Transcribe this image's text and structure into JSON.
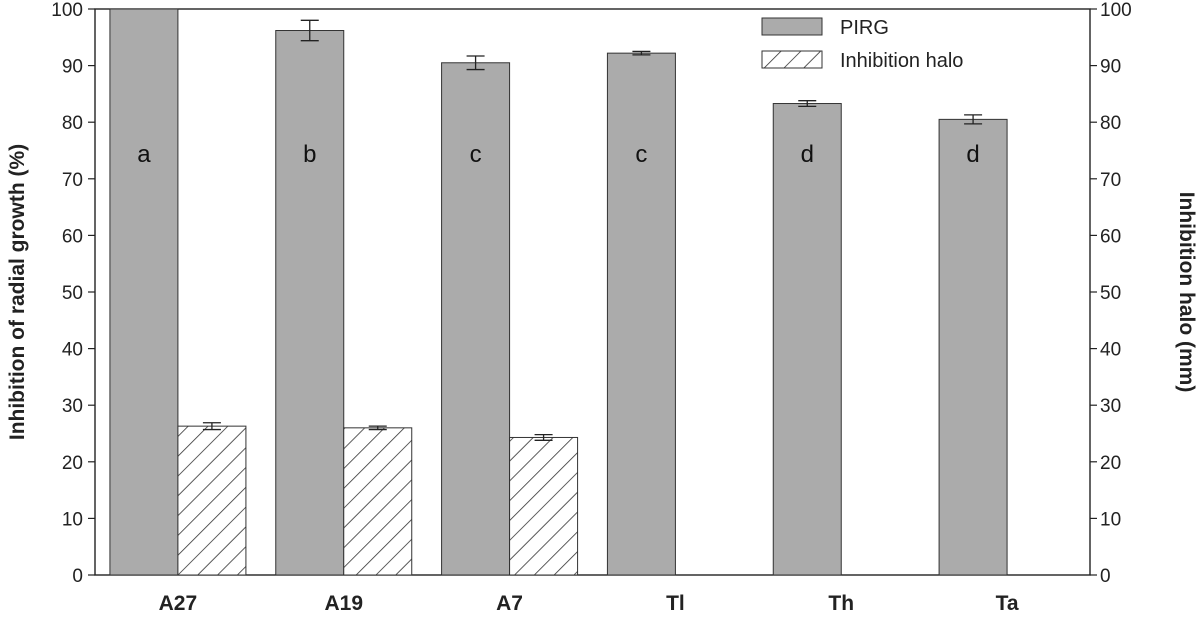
{
  "chart_data": {
    "type": "bar",
    "categories": [
      "A27",
      "A19",
      "A7",
      "Tl",
      "Th",
      "Ta"
    ],
    "series": [
      {
        "name": "PIRG",
        "color": "#ababab",
        "pattern": "solid",
        "axis": "left",
        "values": [
          100,
          96.2,
          90.5,
          92.2,
          83.3,
          80.5
        ],
        "errors": [
          0,
          1.8,
          1.2,
          0.3,
          0.5,
          0.8
        ],
        "letters": [
          "a",
          "b",
          "c",
          "c",
          "d",
          "d"
        ]
      },
      {
        "name": "Inhibition halo",
        "color": "#ffffff",
        "pattern": "diagonal-hatch",
        "axis": "right",
        "values": [
          26.3,
          26.0,
          24.3,
          null,
          null,
          null
        ],
        "errors": [
          0.6,
          0.3,
          0.5,
          null,
          null,
          null
        ]
      }
    ],
    "ylabel": "Inhibition of radial growth (%)",
    "ylabel_right": "Inhibition halo (mm)",
    "xlabel": "",
    "ylim": [
      0,
      100
    ],
    "ylim_right": [
      0,
      100
    ],
    "yticks": [
      0,
      10,
      20,
      30,
      40,
      50,
      60,
      70,
      80,
      90,
      100
    ],
    "legend": "top-right",
    "grid": false
  }
}
